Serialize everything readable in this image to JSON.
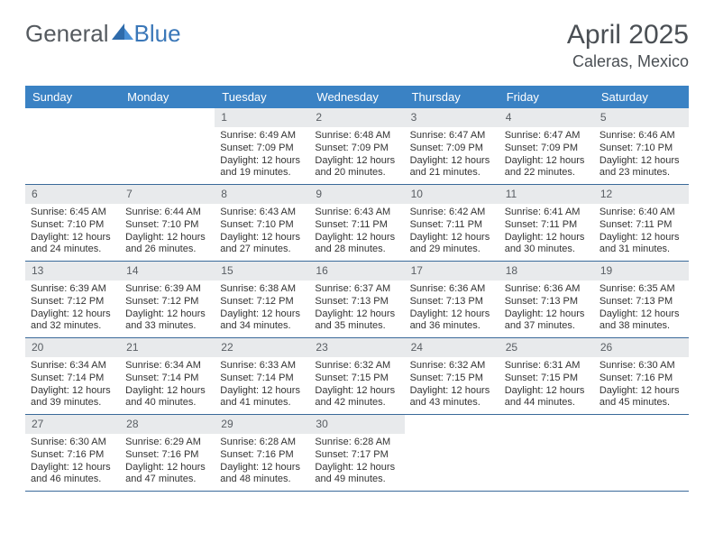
{
  "logo": {
    "text1": "General",
    "text2": "Blue"
  },
  "title": {
    "month": "April 2025",
    "location": "Caleras, Mexico"
  },
  "colors": {
    "header_bg": "#3a82c4",
    "header_text": "#ffffff",
    "daynum_bg": "#e8eaec",
    "daynum_text": "#595e63",
    "week_border": "#3a6a9a",
    "logo_accent": "#3a77b8",
    "logo_gray": "#555a5f"
  },
  "days_of_week": [
    "Sunday",
    "Monday",
    "Tuesday",
    "Wednesday",
    "Thursday",
    "Friday",
    "Saturday"
  ],
  "weeks": [
    [
      null,
      null,
      {
        "num": "1",
        "sunrise": "Sunrise: 6:49 AM",
        "sunset": "Sunset: 7:09 PM",
        "daylight": "Daylight: 12 hours and 19 minutes."
      },
      {
        "num": "2",
        "sunrise": "Sunrise: 6:48 AM",
        "sunset": "Sunset: 7:09 PM",
        "daylight": "Daylight: 12 hours and 20 minutes."
      },
      {
        "num": "3",
        "sunrise": "Sunrise: 6:47 AM",
        "sunset": "Sunset: 7:09 PM",
        "daylight": "Daylight: 12 hours and 21 minutes."
      },
      {
        "num": "4",
        "sunrise": "Sunrise: 6:47 AM",
        "sunset": "Sunset: 7:09 PM",
        "daylight": "Daylight: 12 hours and 22 minutes."
      },
      {
        "num": "5",
        "sunrise": "Sunrise: 6:46 AM",
        "sunset": "Sunset: 7:10 PM",
        "daylight": "Daylight: 12 hours and 23 minutes."
      }
    ],
    [
      {
        "num": "6",
        "sunrise": "Sunrise: 6:45 AM",
        "sunset": "Sunset: 7:10 PM",
        "daylight": "Daylight: 12 hours and 24 minutes."
      },
      {
        "num": "7",
        "sunrise": "Sunrise: 6:44 AM",
        "sunset": "Sunset: 7:10 PM",
        "daylight": "Daylight: 12 hours and 26 minutes."
      },
      {
        "num": "8",
        "sunrise": "Sunrise: 6:43 AM",
        "sunset": "Sunset: 7:10 PM",
        "daylight": "Daylight: 12 hours and 27 minutes."
      },
      {
        "num": "9",
        "sunrise": "Sunrise: 6:43 AM",
        "sunset": "Sunset: 7:11 PM",
        "daylight": "Daylight: 12 hours and 28 minutes."
      },
      {
        "num": "10",
        "sunrise": "Sunrise: 6:42 AM",
        "sunset": "Sunset: 7:11 PM",
        "daylight": "Daylight: 12 hours and 29 minutes."
      },
      {
        "num": "11",
        "sunrise": "Sunrise: 6:41 AM",
        "sunset": "Sunset: 7:11 PM",
        "daylight": "Daylight: 12 hours and 30 minutes."
      },
      {
        "num": "12",
        "sunrise": "Sunrise: 6:40 AM",
        "sunset": "Sunset: 7:11 PM",
        "daylight": "Daylight: 12 hours and 31 minutes."
      }
    ],
    [
      {
        "num": "13",
        "sunrise": "Sunrise: 6:39 AM",
        "sunset": "Sunset: 7:12 PM",
        "daylight": "Daylight: 12 hours and 32 minutes."
      },
      {
        "num": "14",
        "sunrise": "Sunrise: 6:39 AM",
        "sunset": "Sunset: 7:12 PM",
        "daylight": "Daylight: 12 hours and 33 minutes."
      },
      {
        "num": "15",
        "sunrise": "Sunrise: 6:38 AM",
        "sunset": "Sunset: 7:12 PM",
        "daylight": "Daylight: 12 hours and 34 minutes."
      },
      {
        "num": "16",
        "sunrise": "Sunrise: 6:37 AM",
        "sunset": "Sunset: 7:13 PM",
        "daylight": "Daylight: 12 hours and 35 minutes."
      },
      {
        "num": "17",
        "sunrise": "Sunrise: 6:36 AM",
        "sunset": "Sunset: 7:13 PM",
        "daylight": "Daylight: 12 hours and 36 minutes."
      },
      {
        "num": "18",
        "sunrise": "Sunrise: 6:36 AM",
        "sunset": "Sunset: 7:13 PM",
        "daylight": "Daylight: 12 hours and 37 minutes."
      },
      {
        "num": "19",
        "sunrise": "Sunrise: 6:35 AM",
        "sunset": "Sunset: 7:13 PM",
        "daylight": "Daylight: 12 hours and 38 minutes."
      }
    ],
    [
      {
        "num": "20",
        "sunrise": "Sunrise: 6:34 AM",
        "sunset": "Sunset: 7:14 PM",
        "daylight": "Daylight: 12 hours and 39 minutes."
      },
      {
        "num": "21",
        "sunrise": "Sunrise: 6:34 AM",
        "sunset": "Sunset: 7:14 PM",
        "daylight": "Daylight: 12 hours and 40 minutes."
      },
      {
        "num": "22",
        "sunrise": "Sunrise: 6:33 AM",
        "sunset": "Sunset: 7:14 PM",
        "daylight": "Daylight: 12 hours and 41 minutes."
      },
      {
        "num": "23",
        "sunrise": "Sunrise: 6:32 AM",
        "sunset": "Sunset: 7:15 PM",
        "daylight": "Daylight: 12 hours and 42 minutes."
      },
      {
        "num": "24",
        "sunrise": "Sunrise: 6:32 AM",
        "sunset": "Sunset: 7:15 PM",
        "daylight": "Daylight: 12 hours and 43 minutes."
      },
      {
        "num": "25",
        "sunrise": "Sunrise: 6:31 AM",
        "sunset": "Sunset: 7:15 PM",
        "daylight": "Daylight: 12 hours and 44 minutes."
      },
      {
        "num": "26",
        "sunrise": "Sunrise: 6:30 AM",
        "sunset": "Sunset: 7:16 PM",
        "daylight": "Daylight: 12 hours and 45 minutes."
      }
    ],
    [
      {
        "num": "27",
        "sunrise": "Sunrise: 6:30 AM",
        "sunset": "Sunset: 7:16 PM",
        "daylight": "Daylight: 12 hours and 46 minutes."
      },
      {
        "num": "28",
        "sunrise": "Sunrise: 6:29 AM",
        "sunset": "Sunset: 7:16 PM",
        "daylight": "Daylight: 12 hours and 47 minutes."
      },
      {
        "num": "29",
        "sunrise": "Sunrise: 6:28 AM",
        "sunset": "Sunset: 7:16 PM",
        "daylight": "Daylight: 12 hours and 48 minutes."
      },
      {
        "num": "30",
        "sunrise": "Sunrise: 6:28 AM",
        "sunset": "Sunset: 7:17 PM",
        "daylight": "Daylight: 12 hours and 49 minutes."
      },
      null,
      null,
      null
    ]
  ]
}
